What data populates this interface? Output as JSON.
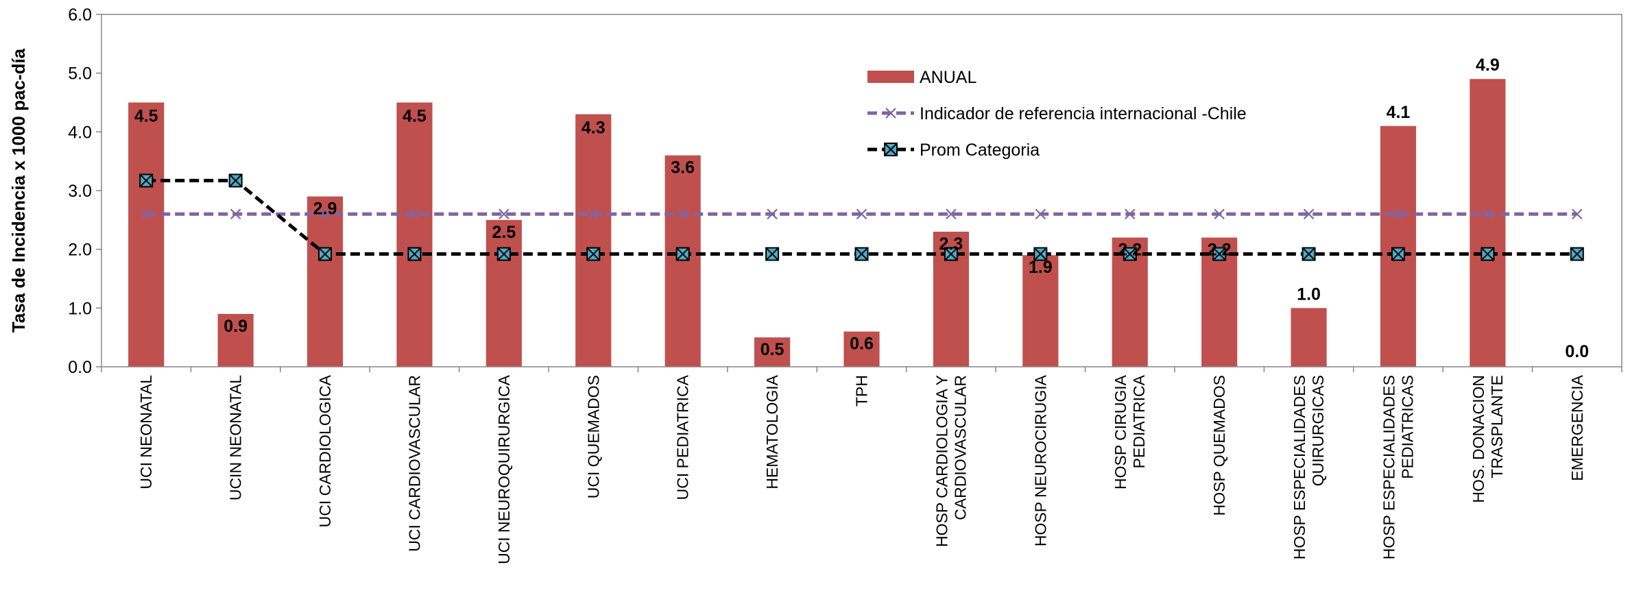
{
  "chart_data": {
    "type": "bar",
    "ylabel": "Tasa de Incidencia x 1000 pac-día",
    "ylim": [
      0,
      6
    ],
    "yticks": [
      "0.0",
      "1.0",
      "2.0",
      "3.0",
      "4.0",
      "5.0",
      "6.0"
    ],
    "categories": [
      [
        "UCI NEONATAL"
      ],
      [
        "UCIN  NEONATAL"
      ],
      [
        "UCI CARDIOLOGICA"
      ],
      [
        "UCI CARDIOVASCULAR"
      ],
      [
        "UCI NEUROQUIRURGICA"
      ],
      [
        "UCI QUEMADOS"
      ],
      [
        "UCI PEDIATRICA"
      ],
      [
        "HEMATOLOGIA"
      ],
      [
        "TPH"
      ],
      [
        "HOSP CARDIOLOGIA Y",
        "CARDIOVASCULAR"
      ],
      [
        "HOSP NEUROCIRUGIA"
      ],
      [
        "HOSP CIRUGIA",
        "PEDIATRICA"
      ],
      [
        "HOSP QUEMADOS"
      ],
      [
        "HOSP ESPECIALIDADES",
        "QUIRURGICAS"
      ],
      [
        "HOSP ESPECIALIDADES",
        "PEDIATRICAS"
      ],
      [
        "HOS. DONACION",
        "TRASPLANTE"
      ],
      [
        "EMERGENCIA"
      ]
    ],
    "series": [
      {
        "name": "ANUAL",
        "type": "bar",
        "color": "#c0504d",
        "values": [
          4.5,
          0.9,
          2.9,
          4.5,
          2.5,
          4.3,
          3.6,
          0.5,
          0.6,
          2.3,
          1.9,
          2.2,
          2.2,
          1.0,
          4.1,
          4.9,
          0.0
        ],
        "labels": [
          "4.5",
          "0.9",
          "2.9",
          "4.5",
          "2.5",
          "4.3",
          "3.6",
          "0.5",
          "0.6",
          "2.3",
          "1.9",
          "2.2",
          "2.2",
          "1.0",
          "4.1",
          "4.9",
          "0.0"
        ]
      },
      {
        "name": "Indicador de referencia internacional -Chile",
        "type": "line",
        "color": "#8064a2",
        "marker": "x",
        "values": [
          2.6,
          2.6,
          2.6,
          2.6,
          2.6,
          2.6,
          2.6,
          2.6,
          2.6,
          2.6,
          2.6,
          2.6,
          2.6,
          2.6,
          2.6,
          2.6,
          2.6
        ]
      },
      {
        "name": "Prom Categoria",
        "type": "line",
        "color": "#000000",
        "marker": "square-x",
        "marker_color": "#4bacc6",
        "values": [
          3.17,
          3.17,
          1.92,
          1.92,
          1.92,
          1.92,
          1.92,
          1.92,
          1.92,
          1.92,
          1.92,
          1.92,
          1.92,
          1.92,
          1.92,
          1.92,
          1.92
        ]
      }
    ],
    "legend": "upper-center"
  }
}
